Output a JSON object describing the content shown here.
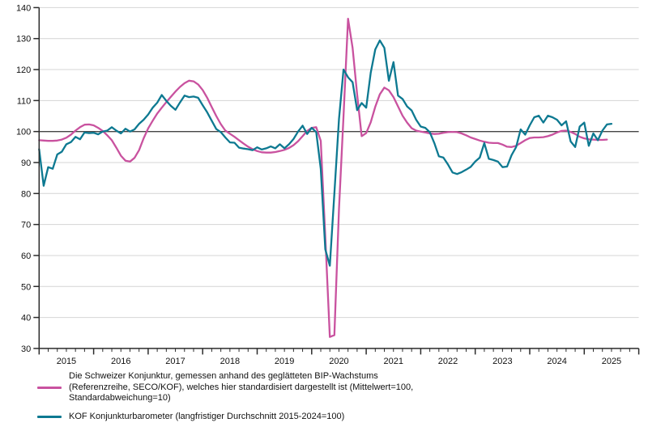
{
  "chart_data": {
    "type": "line",
    "title": "",
    "grid": "horizontal-only",
    "reference_line": 100,
    "y_axis": {
      "min": 30,
      "max": 140,
      "step": 10,
      "tick_labels": [
        "30",
        "40",
        "50",
        "60",
        "70",
        "80",
        "90",
        "100",
        "110",
        "120",
        "130",
        "140"
      ]
    },
    "x_axis": {
      "start_month": "2015-01",
      "end_month": "2026-01",
      "minor_tick_every_months": 2,
      "year_labels": [
        "2015",
        "2016",
        "2017",
        "2018",
        "2019",
        "2020",
        "2021",
        "2022",
        "2023",
        "2024",
        "2025"
      ]
    },
    "colors": {
      "reference_series": "#c9529f",
      "barometer_series": "#0d7991",
      "gridline": "#d4d4d4",
      "zero_line": "#454545",
      "axis": "#2b2b2b",
      "label": "#111111"
    },
    "series": [
      {
        "name": "referenzreihe-seco-kof",
        "label": "Die Schweizer Konjunktur, gemessen anhand des geglätteten BIP-Wachstums (Referenzreihe, SECO/KOF), welches hier standardisiert dargestellt ist (Mittelwert=100, Standardabweichung=10)",
        "label_lines": [
          "Die Schweizer Konjunktur, gemessen anhand des geglätteten BIP-Wachstums",
          "(Referenzreihe, SECO/KOF), welches hier standardisiert dargestellt ist (Mittelwert=100,",
          "Standardabweichung=10)"
        ],
        "color": "#c9529f",
        "start_month": "2015-01",
        "values": [
          97.2,
          97.1,
          97.0,
          97.0,
          97.1,
          97.4,
          98.0,
          99.0,
          100.3,
          101.4,
          102.2,
          102.3,
          102.0,
          101.2,
          100.2,
          98.8,
          97.2,
          94.8,
          92.2,
          90.6,
          90.3,
          91.5,
          94.0,
          97.8,
          101.0,
          103.5,
          105.8,
          107.7,
          109.5,
          111.2,
          112.9,
          114.4,
          115.6,
          116.4,
          116.2,
          115.2,
          113.4,
          110.9,
          107.9,
          105.0,
          102.4,
          100.3,
          99.3,
          98.3,
          97.2,
          96.1,
          95.1,
          94.3,
          93.7,
          93.3,
          93.2,
          93.2,
          93.4,
          93.7,
          94.1,
          94.7,
          95.6,
          96.9,
          98.5,
          100.2,
          101.2,
          101.4,
          97.0,
          66.0,
          33.7,
          34.3,
          75.0,
          105.0,
          136.4,
          127.0,
          112.0,
          98.5,
          99.5,
          103.0,
          108.0,
          112.0,
          114.2,
          113.3,
          111.1,
          108.1,
          105.1,
          102.9,
          101.1,
          100.3,
          100.0,
          99.7,
          99.4,
          99.2,
          99.3,
          99.6,
          99.8,
          99.9,
          99.8,
          99.4,
          98.8,
          98.1,
          97.6,
          97.1,
          96.7,
          96.4,
          96.3,
          96.3,
          95.8,
          95.1,
          95.0,
          95.4,
          96.3,
          97.2,
          97.9,
          98.1,
          98.1,
          98.2,
          98.5,
          99.0,
          99.7,
          100.2,
          100.3,
          99.9,
          99.2,
          98.3,
          97.8,
          97.5,
          97.4,
          97.3,
          97.3,
          97.4
        ]
      },
      {
        "name": "kof-konjunkturbarometer",
        "label": "KOF Konjunkturbarometer (langfristiger Durchschnitt 2015-2024=100)",
        "label_lines": [
          "KOF Konjunkturbarometer (langfristiger Durchschnitt 2015-2024=100)"
        ],
        "color": "#0d7991",
        "start_month": "2015-01",
        "values": [
          94.3,
          82.5,
          88.5,
          88.0,
          92.6,
          93.5,
          95.9,
          96.6,
          98.3,
          97.5,
          99.7,
          99.5,
          99.6,
          99.1,
          100.0,
          100.3,
          101.4,
          100.3,
          99.4,
          100.9,
          100.0,
          100.7,
          102.5,
          103.8,
          105.5,
          107.7,
          109.3,
          111.8,
          109.9,
          108.3,
          107.0,
          109.4,
          111.6,
          111.1,
          111.3,
          110.9,
          108.5,
          106.2,
          103.5,
          100.8,
          99.8,
          98.1,
          96.5,
          96.4,
          94.8,
          94.5,
          94.3,
          94.0,
          94.9,
          94.2,
          94.6,
          95.2,
          94.6,
          95.9,
          94.6,
          95.9,
          97.6,
          100.0,
          101.9,
          99.2,
          101.2,
          99.8,
          88.0,
          62.0,
          56.7,
          80.0,
          104.0,
          120.0,
          117.5,
          115.9,
          106.9,
          109.2,
          107.7,
          119.0,
          126.5,
          129.4,
          127.0,
          116.4,
          122.4,
          111.6,
          110.5,
          108.1,
          106.8,
          103.8,
          101.6,
          101.2,
          99.8,
          96.3,
          92.0,
          91.6,
          89.4,
          86.8,
          86.3,
          86.9,
          87.7,
          88.6,
          90.3,
          91.6,
          96.3,
          91.2,
          90.8,
          90.3,
          88.5,
          88.7,
          92.4,
          95.0,
          100.7,
          99.0,
          102.0,
          104.6,
          105.1,
          102.9,
          105.1,
          104.6,
          103.8,
          102.0,
          103.3,
          96.8,
          95.0,
          101.6,
          102.9,
          95.4,
          99.4,
          97.2,
          100.3,
          102.3,
          102.5
        ]
      }
    ]
  },
  "legend": {
    "entries": [
      {
        "name": "referenzreihe-seco-kof"
      },
      {
        "name": "kof-konjunkturbarometer"
      }
    ]
  }
}
